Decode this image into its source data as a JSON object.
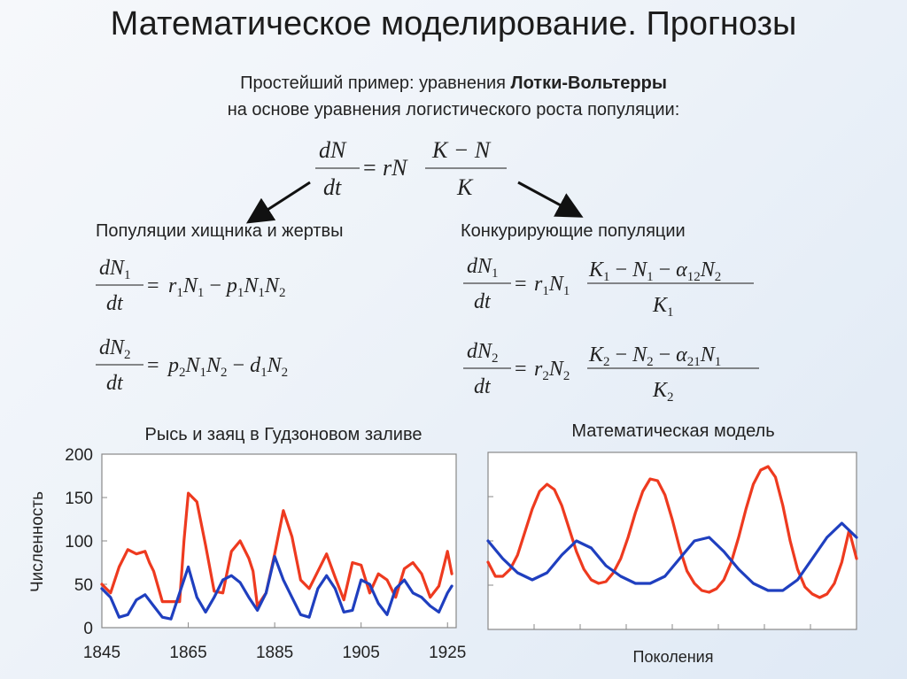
{
  "slide": {
    "title": "Математическое моделирование. Прогнозы",
    "intro_line1_prefix": "Простейший пример: уравнения ",
    "intro_line1_bold": "Лотки-Вольтерры",
    "intro_line2": "на основе уравнения логистического роста популяции:",
    "left_heading": "Популяции хищника и жертвы",
    "right_heading": "Конкурирующие популяции"
  },
  "chart_data": [
    {
      "type": "line",
      "title": "Рысь и заяц в Гудзоновом заливе",
      "ylabel": "Численность",
      "xlabel": "",
      "xlim": [
        1845,
        1927
      ],
      "ylim": [
        0,
        200
      ],
      "yticks": [
        0,
        50,
        100,
        150,
        200
      ],
      "xticks": [
        1845,
        1865,
        1885,
        1905,
        1925
      ],
      "series": [
        {
          "color": "#ee3a1f",
          "x": [
            1845,
            1847,
            1849,
            1851,
            1853,
            1855,
            1856,
            1857,
            1859,
            1861,
            1863,
            1864,
            1865,
            1867,
            1869,
            1871,
            1873,
            1875,
            1877,
            1879,
            1880,
            1881,
            1883,
            1885,
            1887,
            1889,
            1891,
            1893,
            1895,
            1897,
            1899,
            1901,
            1903,
            1905,
            1907,
            1909,
            1911,
            1913,
            1915,
            1917,
            1919,
            1921,
            1923,
            1925,
            1926
          ],
          "y": [
            50,
            40,
            70,
            90,
            85,
            88,
            75,
            65,
            30,
            30,
            30,
            100,
            155,
            145,
            95,
            42,
            40,
            88,
            100,
            80,
            65,
            25,
            40,
            85,
            135,
            105,
            55,
            45,
            65,
            85,
            58,
            32,
            75,
            72,
            40,
            62,
            55,
            35,
            68,
            75,
            62,
            35,
            48,
            88,
            62
          ]
        },
        {
          "color": "#1f3fbf",
          "x": [
            1845,
            1847,
            1849,
            1851,
            1853,
            1855,
            1857,
            1859,
            1861,
            1863,
            1865,
            1867,
            1869,
            1871,
            1873,
            1875,
            1877,
            1879,
            1881,
            1883,
            1885,
            1887,
            1889,
            1891,
            1893,
            1895,
            1897,
            1899,
            1901,
            1903,
            1905,
            1907,
            1909,
            1911,
            1913,
            1915,
            1917,
            1919,
            1921,
            1923,
            1925,
            1926
          ],
          "y": [
            45,
            35,
            12,
            15,
            32,
            38,
            25,
            12,
            10,
            40,
            70,
            35,
            18,
            35,
            55,
            60,
            52,
            35,
            20,
            40,
            82,
            55,
            35,
            15,
            12,
            45,
            60,
            45,
            18,
            20,
            55,
            50,
            28,
            15,
            45,
            55,
            40,
            35,
            25,
            18,
            40,
            48
          ]
        }
      ]
    },
    {
      "type": "line",
      "title": "Математическая модель",
      "xlabel": "Поколения",
      "ylabel": "",
      "xlim": [
        0,
        100
      ],
      "ylim": [
        0,
        100
      ],
      "series": [
        {
          "color": "#ee3a1f",
          "x": [
            0,
            2,
            4,
            6,
            8,
            10,
            12,
            14,
            16,
            18,
            20,
            22,
            24,
            26,
            28,
            30,
            32,
            34,
            36,
            38,
            40,
            42,
            44,
            46,
            48,
            50,
            52,
            54,
            56,
            58,
            60,
            62,
            64,
            66,
            68,
            70,
            72,
            74,
            76,
            78,
            80,
            82,
            84,
            86,
            88,
            90,
            92,
            94,
            96,
            98,
            100
          ],
          "y": [
            38,
            30,
            30,
            34,
            42,
            55,
            68,
            78,
            82,
            79,
            70,
            57,
            44,
            34,
            28,
            26,
            27,
            32,
            40,
            52,
            66,
            78,
            85,
            84,
            76,
            62,
            46,
            33,
            26,
            22,
            21,
            23,
            28,
            38,
            52,
            68,
            82,
            90,
            92,
            86,
            70,
            50,
            34,
            24,
            20,
            18,
            20,
            26,
            38,
            56,
            40
          ]
        },
        {
          "color": "#1f3fbf",
          "x": [
            0,
            4,
            8,
            12,
            16,
            20,
            24,
            28,
            32,
            36,
            40,
            44,
            48,
            52,
            56,
            60,
            64,
            68,
            72,
            76,
            80,
            84,
            88,
            92,
            96,
            100
          ],
          "y": [
            50,
            40,
            32,
            28,
            32,
            42,
            50,
            46,
            36,
            30,
            26,
            26,
            30,
            40,
            50,
            52,
            44,
            34,
            26,
            22,
            22,
            28,
            40,
            52,
            60,
            52
          ]
        }
      ]
    }
  ]
}
